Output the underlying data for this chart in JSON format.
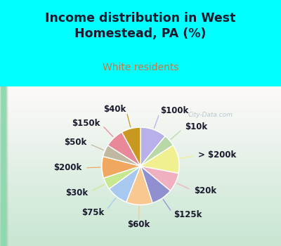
{
  "title": "Income distribution in West\nHomestead, PA (%)",
  "subtitle": "White residents",
  "title_color": "#1a1a2e",
  "subtitle_color": "#c87840",
  "background_color": "#00ffff",
  "labels": [
    "$100k",
    "$10k",
    "> $200k",
    "$20k",
    "$125k",
    "$60k",
    "$75k",
    "$30k",
    "$200k",
    "$50k",
    "$150k",
    "$40k"
  ],
  "values": [
    11,
    5,
    12,
    8,
    9,
    11,
    9,
    5,
    9,
    5,
    8,
    8
  ],
  "colors": [
    "#b8b0e8",
    "#b8d8a8",
    "#f0f090",
    "#f0b0c0",
    "#9090d0",
    "#f8c890",
    "#a8c8f0",
    "#c8e890",
    "#f0a860",
    "#c0b8a0",
    "#e88898",
    "#c89820"
  ],
  "wedge_edge_color": "white",
  "wedge_linewidth": 1.0,
  "label_fontsize": 8.5,
  "watermark": "City-Data.com"
}
